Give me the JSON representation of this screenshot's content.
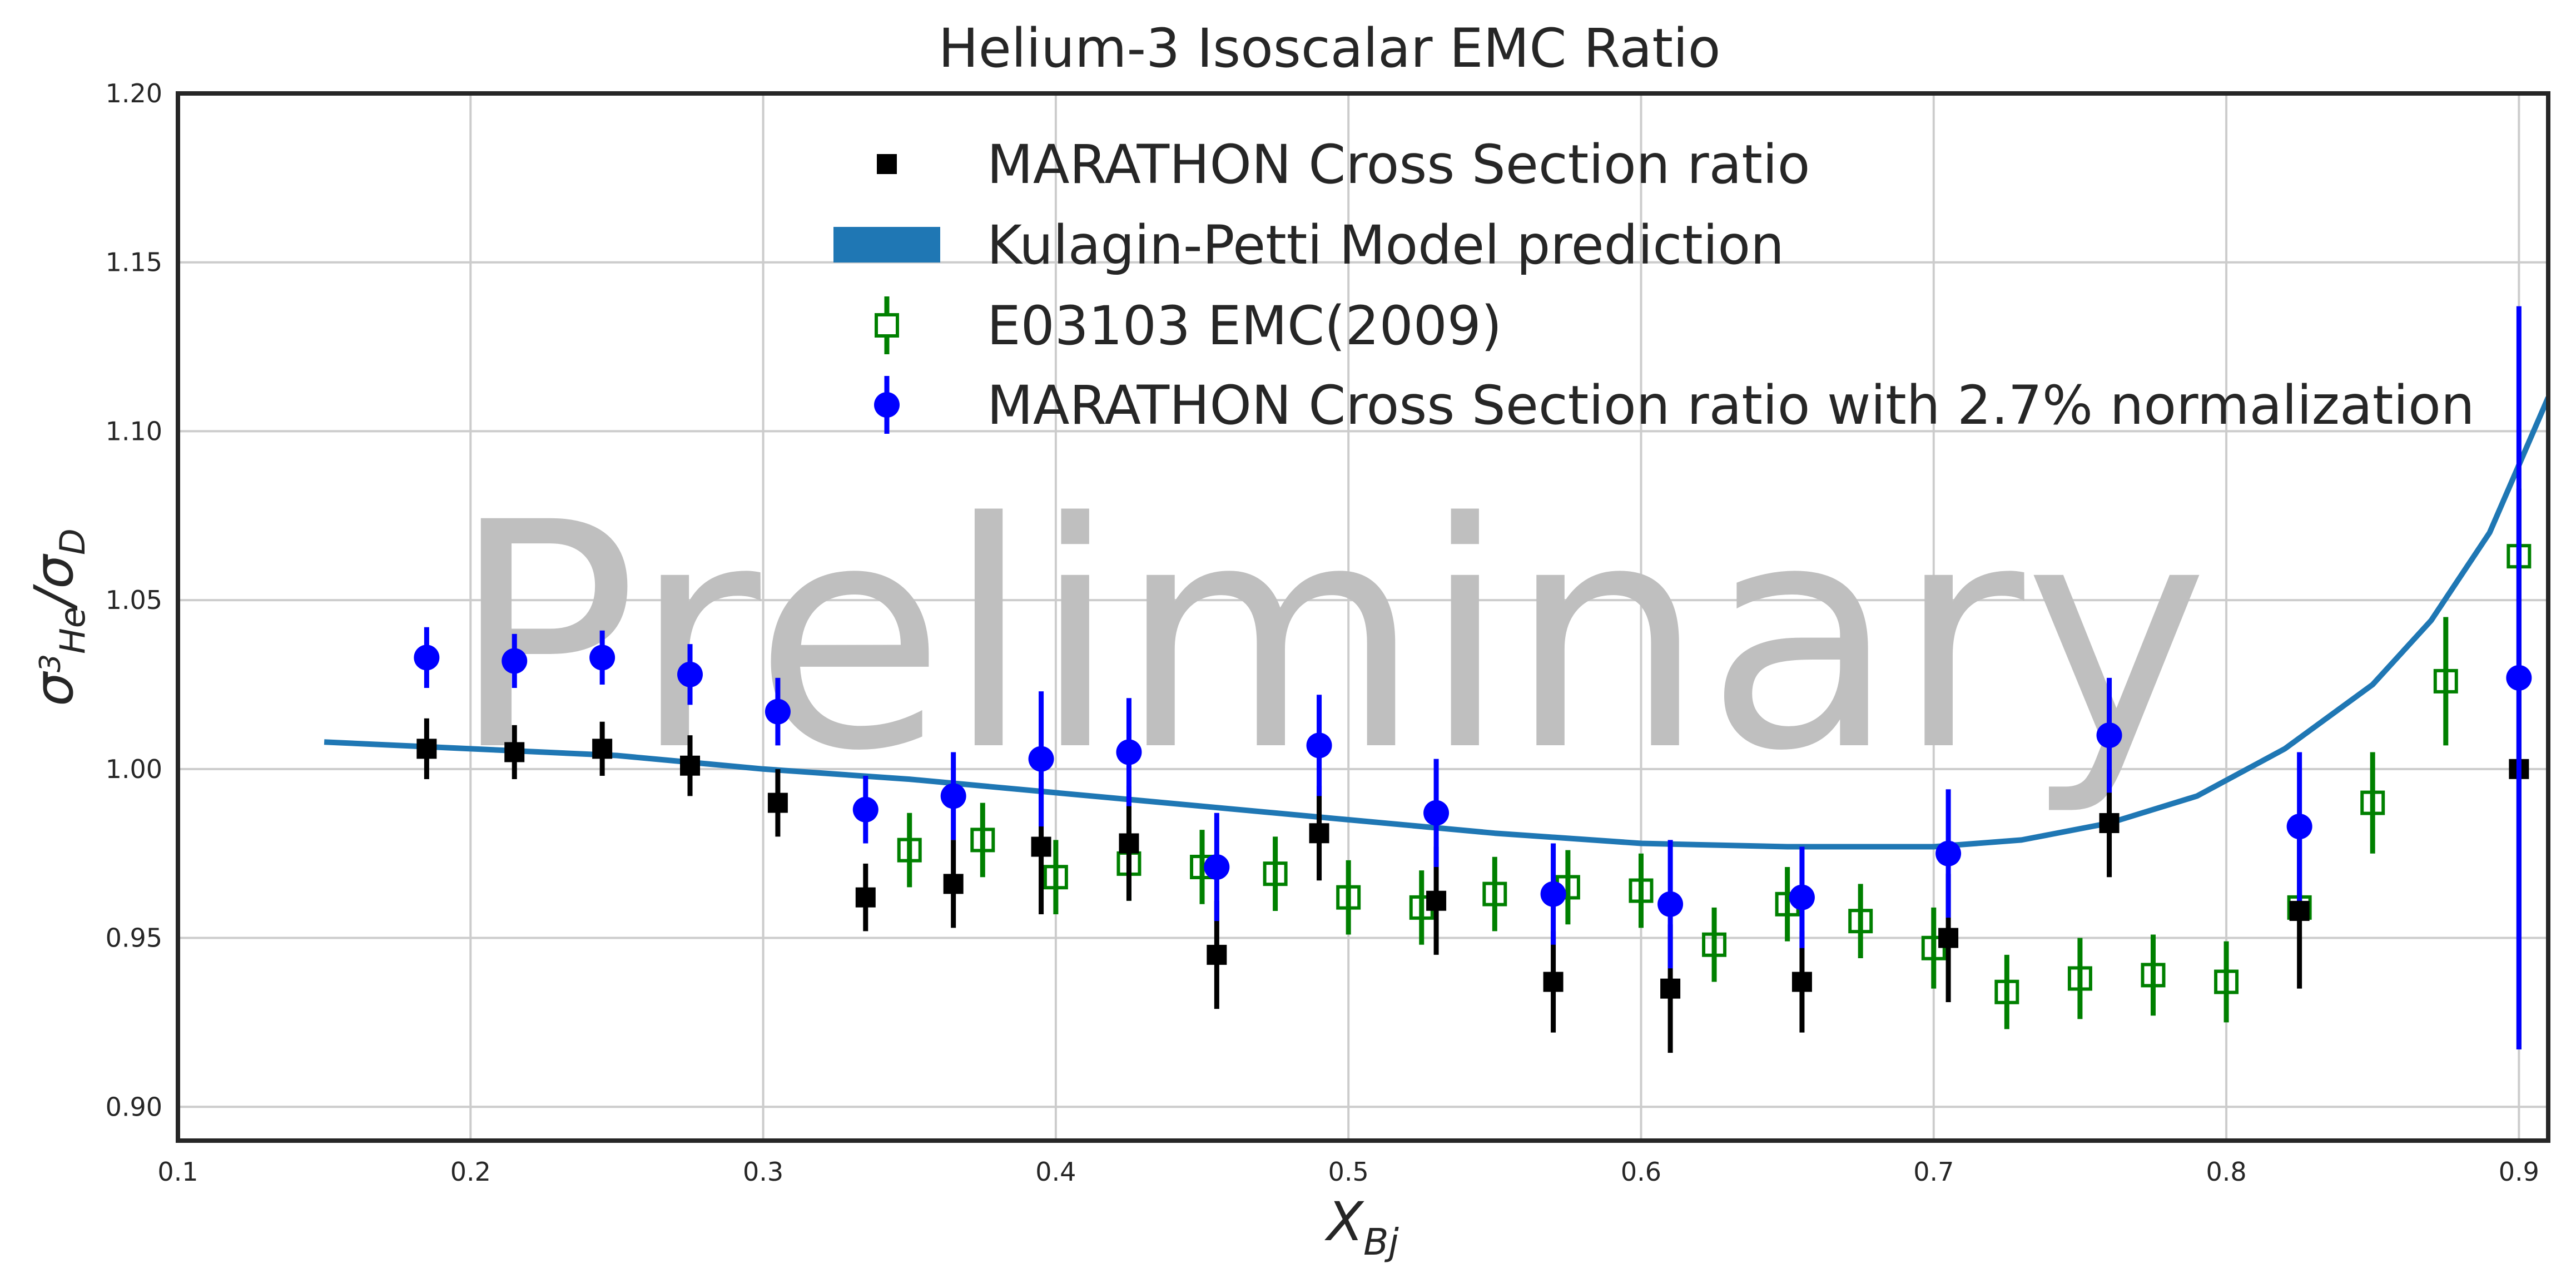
{
  "chart_data": {
    "type": "scatter",
    "title": "Helium-3 Isoscalar EMC Ratio",
    "xlabel": "X_Bj",
    "ylabel": "σ3He/σD",
    "xlim": [
      0.1,
      0.91
    ],
    "ylim": [
      0.89,
      1.2
    ],
    "xticks": [
      "0.1",
      "0.2",
      "0.3",
      "0.4",
      "0.5",
      "0.6",
      "0.7",
      "0.8",
      "0.9"
    ],
    "yticks": [
      "0.90",
      "0.95",
      "1.00",
      "1.05",
      "1.10",
      "1.15",
      "1.20"
    ],
    "grid": true,
    "legend_position": "top-center",
    "watermark": "Preliminary",
    "series": [
      {
        "name": "MARATHON Cross Section ratio",
        "marker": "filled-square",
        "color": "#000000",
        "points": [
          {
            "x": 0.185,
            "y": 1.006,
            "err": 0.009
          },
          {
            "x": 0.215,
            "y": 1.005,
            "err": 0.008
          },
          {
            "x": 0.245,
            "y": 1.006,
            "err": 0.008
          },
          {
            "x": 0.275,
            "y": 1.001,
            "err": 0.009
          },
          {
            "x": 0.305,
            "y": 0.99,
            "err": 0.01
          },
          {
            "x": 0.335,
            "y": 0.962,
            "err": 0.01
          },
          {
            "x": 0.365,
            "y": 0.966,
            "err": 0.013
          },
          {
            "x": 0.395,
            "y": 0.977,
            "err": 0.02
          },
          {
            "x": 0.425,
            "y": 0.978,
            "err": 0.017
          },
          {
            "x": 0.455,
            "y": 0.945,
            "err": 0.016
          },
          {
            "x": 0.49,
            "y": 0.981,
            "err": 0.014
          },
          {
            "x": 0.53,
            "y": 0.961,
            "err": 0.016
          },
          {
            "x": 0.57,
            "y": 0.937,
            "err": 0.015
          },
          {
            "x": 0.61,
            "y": 0.935,
            "err": 0.019
          },
          {
            "x": 0.655,
            "y": 0.937,
            "err": 0.015
          },
          {
            "x": 0.705,
            "y": 0.95,
            "err": 0.019
          },
          {
            "x": 0.76,
            "y": 0.984,
            "err": 0.016
          },
          {
            "x": 0.825,
            "y": 0.958,
            "err": 0.023
          },
          {
            "x": 0.9,
            "y": 1.0,
            "err": 0.083
          }
        ]
      },
      {
        "name": "Kulagin-Petti Model prediction",
        "marker": "line",
        "color": "#1f77b4",
        "curve": [
          {
            "x": 0.15,
            "y": 1.008
          },
          {
            "x": 0.2,
            "y": 1.006
          },
          {
            "x": 0.25,
            "y": 1.004
          },
          {
            "x": 0.3,
            "y": 1.0
          },
          {
            "x": 0.35,
            "y": 0.997
          },
          {
            "x": 0.4,
            "y": 0.993
          },
          {
            "x": 0.45,
            "y": 0.989
          },
          {
            "x": 0.5,
            "y": 0.985
          },
          {
            "x": 0.55,
            "y": 0.981
          },
          {
            "x": 0.6,
            "y": 0.978
          },
          {
            "x": 0.65,
            "y": 0.977
          },
          {
            "x": 0.67,
            "y": 0.977
          },
          {
            "x": 0.7,
            "y": 0.977
          },
          {
            "x": 0.73,
            "y": 0.979
          },
          {
            "x": 0.76,
            "y": 0.984
          },
          {
            "x": 0.79,
            "y": 0.992
          },
          {
            "x": 0.82,
            "y": 1.006
          },
          {
            "x": 0.85,
            "y": 1.025
          },
          {
            "x": 0.87,
            "y": 1.044
          },
          {
            "x": 0.89,
            "y": 1.07
          },
          {
            "x": 0.91,
            "y": 1.11
          }
        ]
      },
      {
        "name": "E03103 EMC(2009)",
        "marker": "open-square",
        "color": "#008000",
        "points": [
          {
            "x": 0.35,
            "y": 0.976,
            "err": 0.011
          },
          {
            "x": 0.375,
            "y": 0.979,
            "err": 0.011
          },
          {
            "x": 0.4,
            "y": 0.968,
            "err": 0.011
          },
          {
            "x": 0.425,
            "y": 0.972,
            "err": 0.011
          },
          {
            "x": 0.45,
            "y": 0.971,
            "err": 0.011
          },
          {
            "x": 0.475,
            "y": 0.969,
            "err": 0.011
          },
          {
            "x": 0.5,
            "y": 0.962,
            "err": 0.011
          },
          {
            "x": 0.525,
            "y": 0.959,
            "err": 0.011
          },
          {
            "x": 0.55,
            "y": 0.963,
            "err": 0.011
          },
          {
            "x": 0.575,
            "y": 0.965,
            "err": 0.011
          },
          {
            "x": 0.6,
            "y": 0.964,
            "err": 0.011
          },
          {
            "x": 0.625,
            "y": 0.948,
            "err": 0.011
          },
          {
            "x": 0.65,
            "y": 0.96,
            "err": 0.011
          },
          {
            "x": 0.675,
            "y": 0.955,
            "err": 0.011
          },
          {
            "x": 0.7,
            "y": 0.947,
            "err": 0.012
          },
          {
            "x": 0.725,
            "y": 0.934,
            "err": 0.011
          },
          {
            "x": 0.75,
            "y": 0.938,
            "err": 0.012
          },
          {
            "x": 0.775,
            "y": 0.939,
            "err": 0.012
          },
          {
            "x": 0.8,
            "y": 0.937,
            "err": 0.012
          },
          {
            "x": 0.825,
            "y": 0.959,
            "err": 0.004
          },
          {
            "x": 0.85,
            "y": 0.99,
            "err": 0.015
          },
          {
            "x": 0.875,
            "y": 1.026,
            "err": 0.019
          },
          {
            "x": 0.9,
            "y": 1.063,
            "err": 0.004
          }
        ]
      },
      {
        "name": "MARATHON Cross Section ratio with 2.7% normalization",
        "marker": "filled-circle",
        "color": "#0000ff",
        "points": [
          {
            "x": 0.185,
            "y": 1.033,
            "err": 0.009
          },
          {
            "x": 0.215,
            "y": 1.032,
            "err": 0.008
          },
          {
            "x": 0.245,
            "y": 1.033,
            "err": 0.008
          },
          {
            "x": 0.275,
            "y": 1.028,
            "err": 0.009
          },
          {
            "x": 0.305,
            "y": 1.017,
            "err": 0.01
          },
          {
            "x": 0.335,
            "y": 0.988,
            "err": 0.01
          },
          {
            "x": 0.365,
            "y": 0.992,
            "err": 0.013
          },
          {
            "x": 0.395,
            "y": 1.003,
            "err": 0.02
          },
          {
            "x": 0.425,
            "y": 1.005,
            "err": 0.016
          },
          {
            "x": 0.455,
            "y": 0.971,
            "err": 0.016
          },
          {
            "x": 0.49,
            "y": 1.007,
            "err": 0.015
          },
          {
            "x": 0.53,
            "y": 0.987,
            "err": 0.016
          },
          {
            "x": 0.57,
            "y": 0.963,
            "err": 0.015
          },
          {
            "x": 0.61,
            "y": 0.96,
            "err": 0.019
          },
          {
            "x": 0.655,
            "y": 0.962,
            "err": 0.015
          },
          {
            "x": 0.705,
            "y": 0.975,
            "err": 0.019
          },
          {
            "x": 0.76,
            "y": 1.01,
            "err": 0.017
          },
          {
            "x": 0.825,
            "y": 0.983,
            "err": 0.022
          },
          {
            "x": 0.9,
            "y": 1.027,
            "err": 0.11
          }
        ]
      }
    ]
  }
}
